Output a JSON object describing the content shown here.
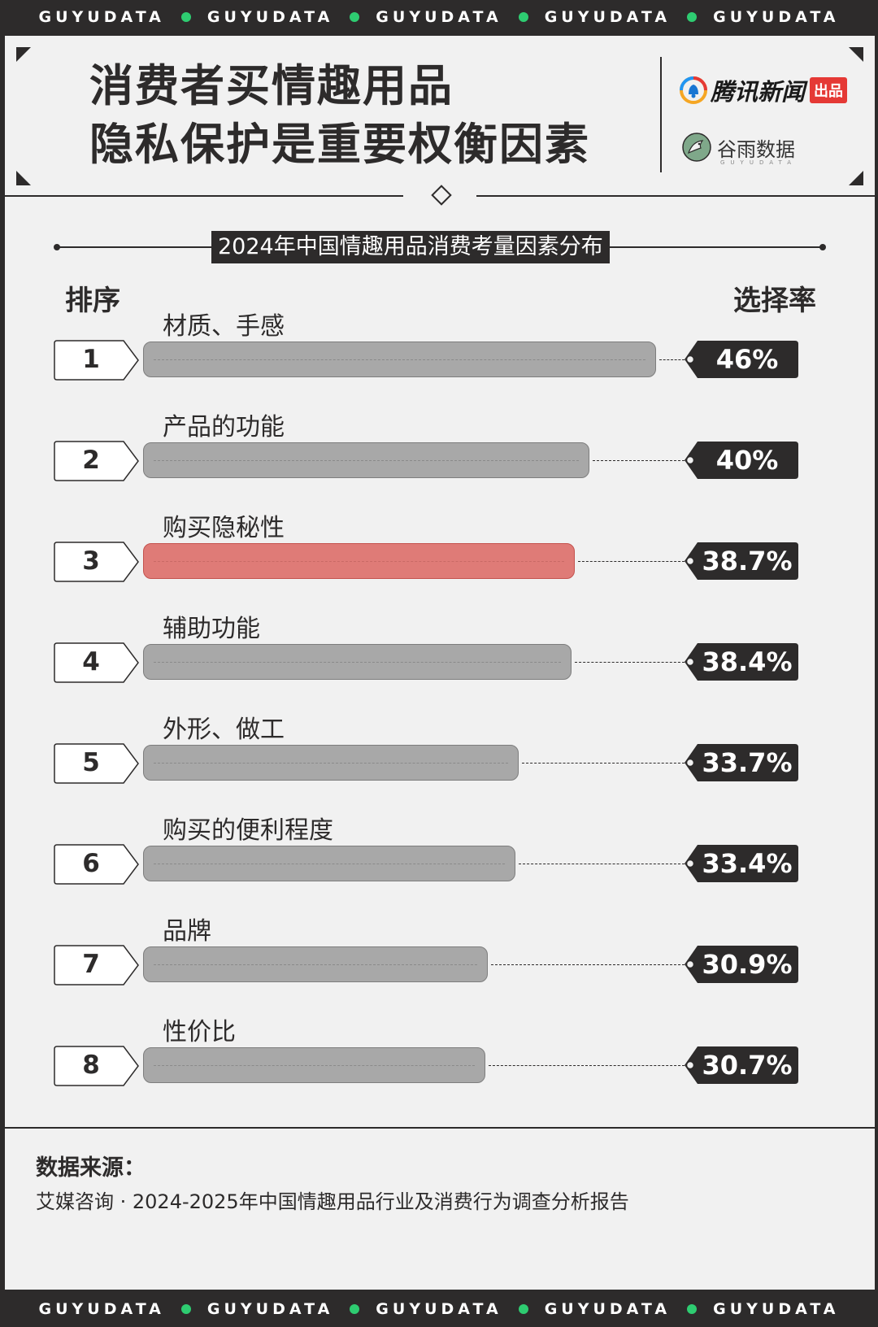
{
  "banner": {
    "words": [
      "GUYUDATA",
      "GUYUDATA",
      "GUYUDATA",
      "GUYUDATA",
      "GUYUDATA"
    ],
    "dot_color": "#2ecc71"
  },
  "header": {
    "title_line1": "消费者买情趣用品",
    "title_line2": "隐私保护是重要权衡因素",
    "brand_a": "腾讯新闻",
    "brand_a_badge": "出品",
    "brand_b": "谷雨数据",
    "brand_b_sub": "GUYUDATA"
  },
  "chart_data": {
    "type": "bar",
    "title": "2024年中国情趣用品消费考量因素分布",
    "rank_header": "排序",
    "value_header": "选择率",
    "highlight_index": 2,
    "highlight_color": "#df7b77",
    "bar_color": "#a8a8a8",
    "items": [
      {
        "rank": "1",
        "label": "材质、手感",
        "value": 46,
        "display": "46%"
      },
      {
        "rank": "2",
        "label": "产品的功能",
        "value": 40,
        "display": "40%"
      },
      {
        "rank": "3",
        "label": "购买隐秘性",
        "value": 38.7,
        "display": "38.7%"
      },
      {
        "rank": "4",
        "label": "辅助功能",
        "value": 38.4,
        "display": "38.4%"
      },
      {
        "rank": "5",
        "label": "外形、做工",
        "value": 33.7,
        "display": "33.7%"
      },
      {
        "rank": "6",
        "label": "购买的便利程度",
        "value": 33.4,
        "display": "33.4%"
      },
      {
        "rank": "7",
        "label": "品牌",
        "value": 30.9,
        "display": "30.9%"
      },
      {
        "rank": "8",
        "label": "性价比",
        "value": 30.7,
        "display": "30.7%"
      }
    ]
  },
  "source": {
    "title": "数据来源：",
    "text": "艾媒咨询 · 2024-2025年中国情趣用品行业及消费行为调查分析报告"
  }
}
